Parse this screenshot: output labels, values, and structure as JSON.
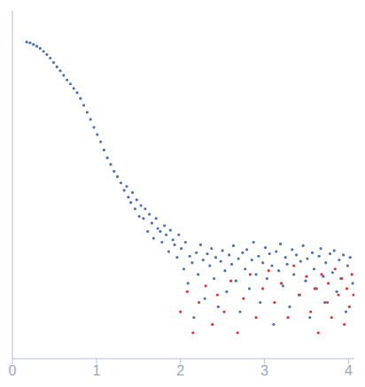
{
  "chart_data": {
    "type": "scatter",
    "log": "y",
    "tick_labels": "x",
    "grid": false,
    "xlim": [
      0,
      4.07
    ],
    "xticks": [
      0,
      1,
      2,
      3,
      4
    ],
    "ylim": [
      0.0002,
      2.2
    ],
    "yticks": [
      0.001,
      0.01,
      0.1,
      1
    ],
    "series": [
      {
        "color": "#4a72b8",
        "marker": "circle",
        "x": [
          0.17,
          0.21,
          0.25,
          0.29,
          0.33,
          0.37,
          0.41,
          0.45,
          0.49,
          0.53,
          0.57,
          0.61,
          0.65,
          0.69,
          0.73,
          0.77,
          0.81,
          0.85,
          0.89,
          0.93,
          0.97,
          1.01,
          1.05,
          1.09,
          1.13,
          1.17,
          1.21,
          1.25,
          1.29,
          1.33,
          1.36,
          1.38,
          1.41,
          1.43,
          1.46,
          1.48,
          1.51,
          1.53,
          1.56,
          1.58,
          1.61,
          1.63,
          1.66,
          1.68,
          1.71,
          1.73,
          1.76,
          1.78,
          1.81,
          1.83,
          1.86,
          1.88,
          1.91,
          1.93,
          1.96,
          1.98,
          2.01,
          2.04,
          2.06,
          2.09,
          2.11,
          2.14,
          2.16,
          2.19,
          2.21,
          2.24,
          2.27,
          2.29,
          2.32,
          2.35,
          2.37,
          2.4,
          2.42,
          2.45,
          2.48,
          2.5,
          2.53,
          2.55,
          2.58,
          2.61,
          2.63,
          2.66,
          2.69,
          2.71,
          2.74,
          2.77,
          2.79,
          2.82,
          2.85,
          2.87,
          2.9,
          2.93,
          2.95,
          2.98,
          3.01,
          3.03,
          3.06,
          3.09,
          3.11,
          3.14,
          3.17,
          3.19,
          3.22,
          3.25,
          3.27,
          3.3,
          3.33,
          3.35,
          3.38,
          3.41,
          3.43,
          3.46,
          3.49,
          3.51,
          3.54,
          3.57,
          3.59,
          3.62,
          3.65,
          3.67,
          3.7,
          3.73,
          3.75,
          3.78,
          3.81,
          3.83,
          3.86,
          3.89,
          3.91,
          3.94,
          3.97,
          3.99,
          4.02,
          4.05
        ],
        "values": [
          0.95,
          0.93,
          0.89,
          0.85,
          0.8,
          0.74,
          0.68,
          0.62,
          0.55,
          0.49,
          0.44,
          0.39,
          0.345,
          0.31,
          0.275,
          0.245,
          0.21,
          0.175,
          0.145,
          0.12,
          0.097,
          0.08,
          0.066,
          0.053,
          0.043,
          0.036,
          0.03,
          0.026,
          0.022,
          0.018,
          0.02,
          0.015,
          0.013,
          0.017,
          0.011,
          0.014,
          0.009,
          0.012,
          0.0085,
          0.011,
          0.006,
          0.0095,
          0.0075,
          0.005,
          0.0085,
          0.0065,
          0.006,
          0.0045,
          0.007,
          0.0055,
          0.0035,
          0.0062,
          0.0048,
          0.0042,
          0.003,
          0.0055,
          0.0038,
          0.0022,
          0.0045,
          0.0015,
          0.0031,
          0.0026,
          0.0006,
          0.0034,
          0.0019,
          0.0042,
          0.0028,
          0.001,
          0.0033,
          0.0024,
          0.0038,
          0.0017,
          0.003,
          0.0008,
          0.0027,
          0.0036,
          0.0021,
          0.0012,
          0.0032,
          0.0025,
          0.0041,
          0.0016,
          0.0029,
          0.0007,
          0.0034,
          0.0022,
          0.0037,
          0.0013,
          0.0028,
          0.0045,
          0.0019,
          0.0031,
          0.0009,
          0.0026,
          0.0039,
          0.0017,
          0.0033,
          0.0024,
          0.0005,
          0.0035,
          0.0021,
          0.0043,
          0.0014,
          0.003,
          0.0025,
          0.0008,
          0.0037,
          0.0019,
          0.0032,
          0.0011,
          0.0027,
          0.0041,
          0.0016,
          0.0029,
          0.0006,
          0.0034,
          0.0022,
          0.0013,
          0.0031,
          0.0038,
          0.0018,
          0.0026,
          0.0009,
          0.0033,
          0.002,
          0.0036,
          0.0012,
          0.0028,
          0.0017,
          0.0032,
          0.0007,
          0.0024,
          0.003,
          0.0015
        ]
      },
      {
        "color": "#e8312f",
        "marker": "circle",
        "x": [
          2.0,
          2.08,
          2.15,
          2.22,
          2.3,
          2.38,
          2.44,
          2.52,
          2.6,
          2.68,
          2.75,
          2.83,
          2.9,
          2.98,
          3.05,
          3.12,
          3.2,
          3.28,
          3.35,
          3.42,
          3.5,
          3.55,
          3.6,
          3.64,
          3.68,
          3.72,
          3.76,
          3.8,
          3.84,
          3.88,
          3.92,
          3.95,
          3.98,
          4.01,
          4.04,
          4.06
        ],
        "values": [
          0.0007,
          0.0012,
          0.0004,
          0.0009,
          0.0014,
          0.0005,
          0.0011,
          0.0007,
          0.0016,
          0.0004,
          0.001,
          0.0019,
          0.0006,
          0.0013,
          0.0021,
          0.0009,
          0.0015,
          0.0006,
          0.0024,
          0.0011,
          0.0018,
          0.0007,
          0.0013,
          0.0004,
          0.0019,
          0.0009,
          0.0015,
          0.0006,
          0.0022,
          0.0011,
          0.0017,
          0.0005,
          0.0013,
          0.0008,
          0.0019,
          0.0011
        ]
      }
    ]
  }
}
